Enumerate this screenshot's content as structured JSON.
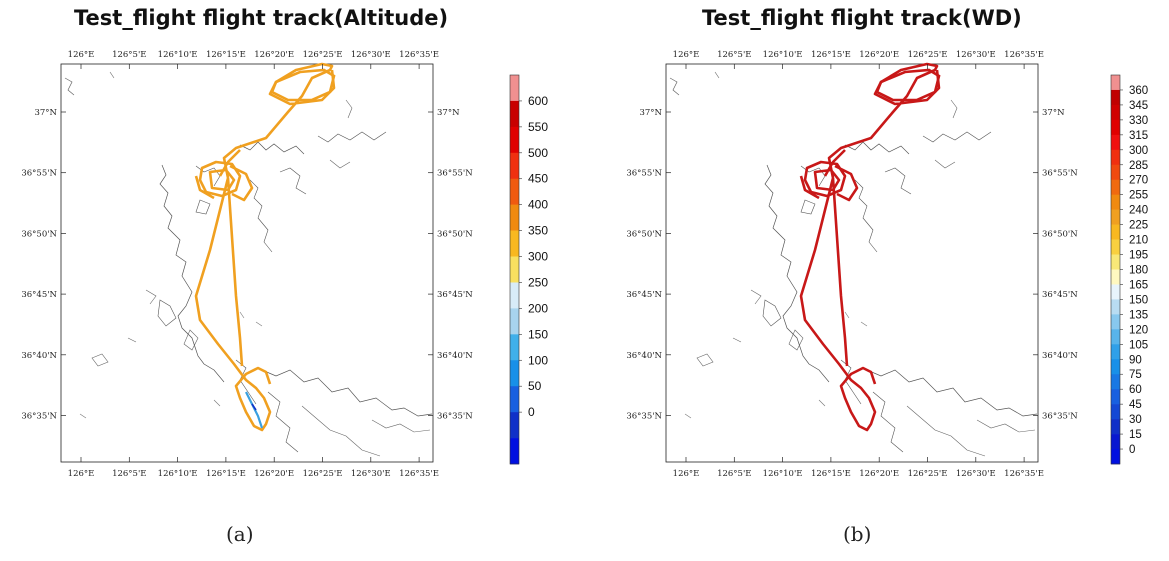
{
  "panels": [
    {
      "id": "a",
      "title": "Test_flight flight track(Altitude)",
      "caption": "(a)",
      "track_color": "#f0a020",
      "low_segment_color": "#3aa0e0",
      "colorbar": {
        "labels": [
          "600",
          "550",
          "500",
          "450",
          "400",
          "350",
          "300",
          "250",
          "200",
          "150",
          "100",
          "50",
          "0"
        ],
        "colors": [
          "#f09090",
          "#c80000",
          "#e00000",
          "#f03010",
          "#f05a10",
          "#f08a10",
          "#f8b820",
          "#f8e060",
          "#d8ecf8",
          "#a8d4ee",
          "#40b0ea",
          "#1890e8",
          "#1860e0",
          "#1030c8",
          "#0010e0"
        ]
      }
    },
    {
      "id": "b",
      "title": "Test_flight flight track(WD)",
      "caption": "(b)",
      "track_color": "#c81818",
      "colorbar": {
        "labels": [
          "360",
          "345",
          "330",
          "315",
          "300",
          "285",
          "270",
          "255",
          "240",
          "225",
          "210",
          "195",
          "180",
          "165",
          "150",
          "135",
          "120",
          "105",
          "90",
          "75",
          "60",
          "45",
          "30",
          "15",
          "0"
        ],
        "colors": [
          "#f09090",
          "#c00000",
          "#d00000",
          "#e00000",
          "#f01010",
          "#f03010",
          "#f04a10",
          "#f06a10",
          "#f08a10",
          "#f0a020",
          "#f8b820",
          "#f8d040",
          "#f8e878",
          "#fff8c0",
          "#e8f4fc",
          "#b8dcf2",
          "#88c8ee",
          "#58b4ea",
          "#30a0e8",
          "#1890e8",
          "#1878e4",
          "#1860e0",
          "#1448d4",
          "#1030c8",
          "#0818d0",
          "#0010e0"
        ]
      }
    }
  ],
  "axes": {
    "x_ticks": [
      "126°E",
      "126°5'E",
      "126°10'E",
      "126°15'E",
      "126°20'E",
      "126°25'E",
      "126°30'E",
      "126°35'E"
    ],
    "y_ticks": [
      "37°N",
      "36°55'N",
      "36°50'N",
      "36°45'N",
      "36°40'N",
      "36°35'N"
    ]
  }
}
